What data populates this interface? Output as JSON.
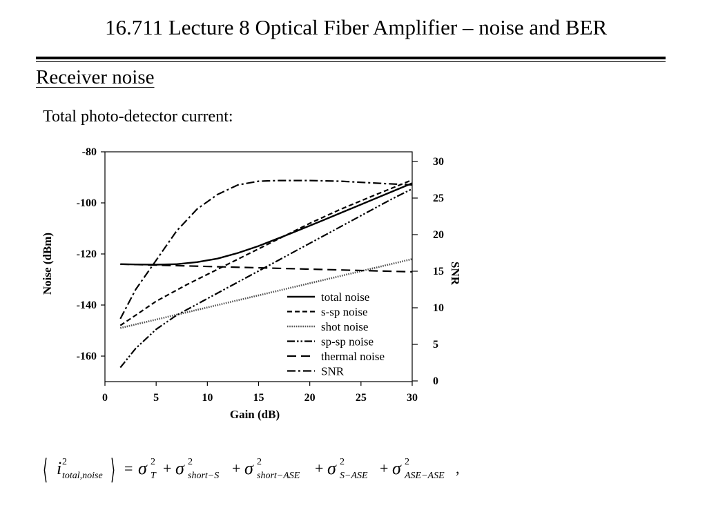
{
  "slide": {
    "title": "16.711 Lecture 8 Optical Fiber Amplifier – noise and BER",
    "heading": "Receiver noise",
    "intro": "Total photo-detector current:"
  },
  "equation": {
    "lhs_base": "i",
    "lhs_sup": "2",
    "lhs_sub": "total,noise",
    "equals": "=",
    "plus": "+",
    "sigma": "σ",
    "sup": "2",
    "terms": [
      "T",
      "short−S",
      "short−ASE",
      "S−ASE",
      "ASE−ASE"
    ],
    "trailing": ","
  },
  "chart_data": {
    "type": "line",
    "title": "",
    "xlabel": "Gain (dB)",
    "ylabel": "Noise (dBm)",
    "y2label": "SNR",
    "xlim": [
      0,
      30
    ],
    "ylim": [
      -170,
      -80
    ],
    "y2lim": [
      0,
      30
    ],
    "xticks": [
      0,
      5,
      10,
      15,
      20,
      25,
      30
    ],
    "yticks": [
      -80,
      -100,
      -120,
      -140,
      -160
    ],
    "y2ticks": [
      0,
      5,
      10,
      15,
      20,
      25,
      30
    ],
    "grid": false,
    "legend_position": "bottom-right",
    "series": [
      {
        "name": "total noise",
        "axis": "left",
        "dash": "solid",
        "x": [
          1.5,
          3,
          5,
          7,
          9,
          11,
          13,
          15,
          18,
          21,
          24,
          27,
          30
        ],
        "y": [
          -124,
          -124.1,
          -124.2,
          -124,
          -123.2,
          -121.8,
          -119.6,
          -116.9,
          -112.2,
          -107.3,
          -102.3,
          -97.3,
          -92.3
        ]
      },
      {
        "name": "s-sp noise",
        "axis": "left",
        "dash": "dash",
        "x": [
          1.5,
          3,
          5,
          8,
          11,
          14,
          17,
          20,
          23,
          26,
          30
        ],
        "y": [
          -148,
          -144,
          -138.5,
          -132,
          -126,
          -120,
          -114,
          -108,
          -102.5,
          -97.5,
          -91
        ]
      },
      {
        "name": "shot noise",
        "axis": "left",
        "dash": "dot",
        "x": [
          1.5,
          30
        ],
        "y": [
          -149,
          -122
        ]
      },
      {
        "name": "sp-sp noise",
        "axis": "left",
        "dash": "dashdotdot",
        "x": [
          1.5,
          3,
          5,
          7,
          10,
          13,
          16,
          19,
          22,
          25,
          28,
          30
        ],
        "y": [
          -164.5,
          -157,
          -149.5,
          -144,
          -137.5,
          -131,
          -124.5,
          -118,
          -111.5,
          -105,
          -98.5,
          -94.5
        ]
      },
      {
        "name": "thermal noise",
        "axis": "left",
        "dash": "longdash",
        "x": [
          1.5,
          30
        ],
        "y": [
          -124,
          -127
        ]
      },
      {
        "name": "SNR",
        "axis": "right",
        "dash": "dashdot",
        "x": [
          1.5,
          3,
          5,
          7,
          9,
          11,
          13,
          15,
          17,
          20,
          23,
          27,
          30
        ],
        "y": [
          8.5,
          12.5,
          16.5,
          20.5,
          23.5,
          25.5,
          26.8,
          27.3,
          27.4,
          27.4,
          27.3,
          27,
          26.8
        ]
      }
    ]
  }
}
